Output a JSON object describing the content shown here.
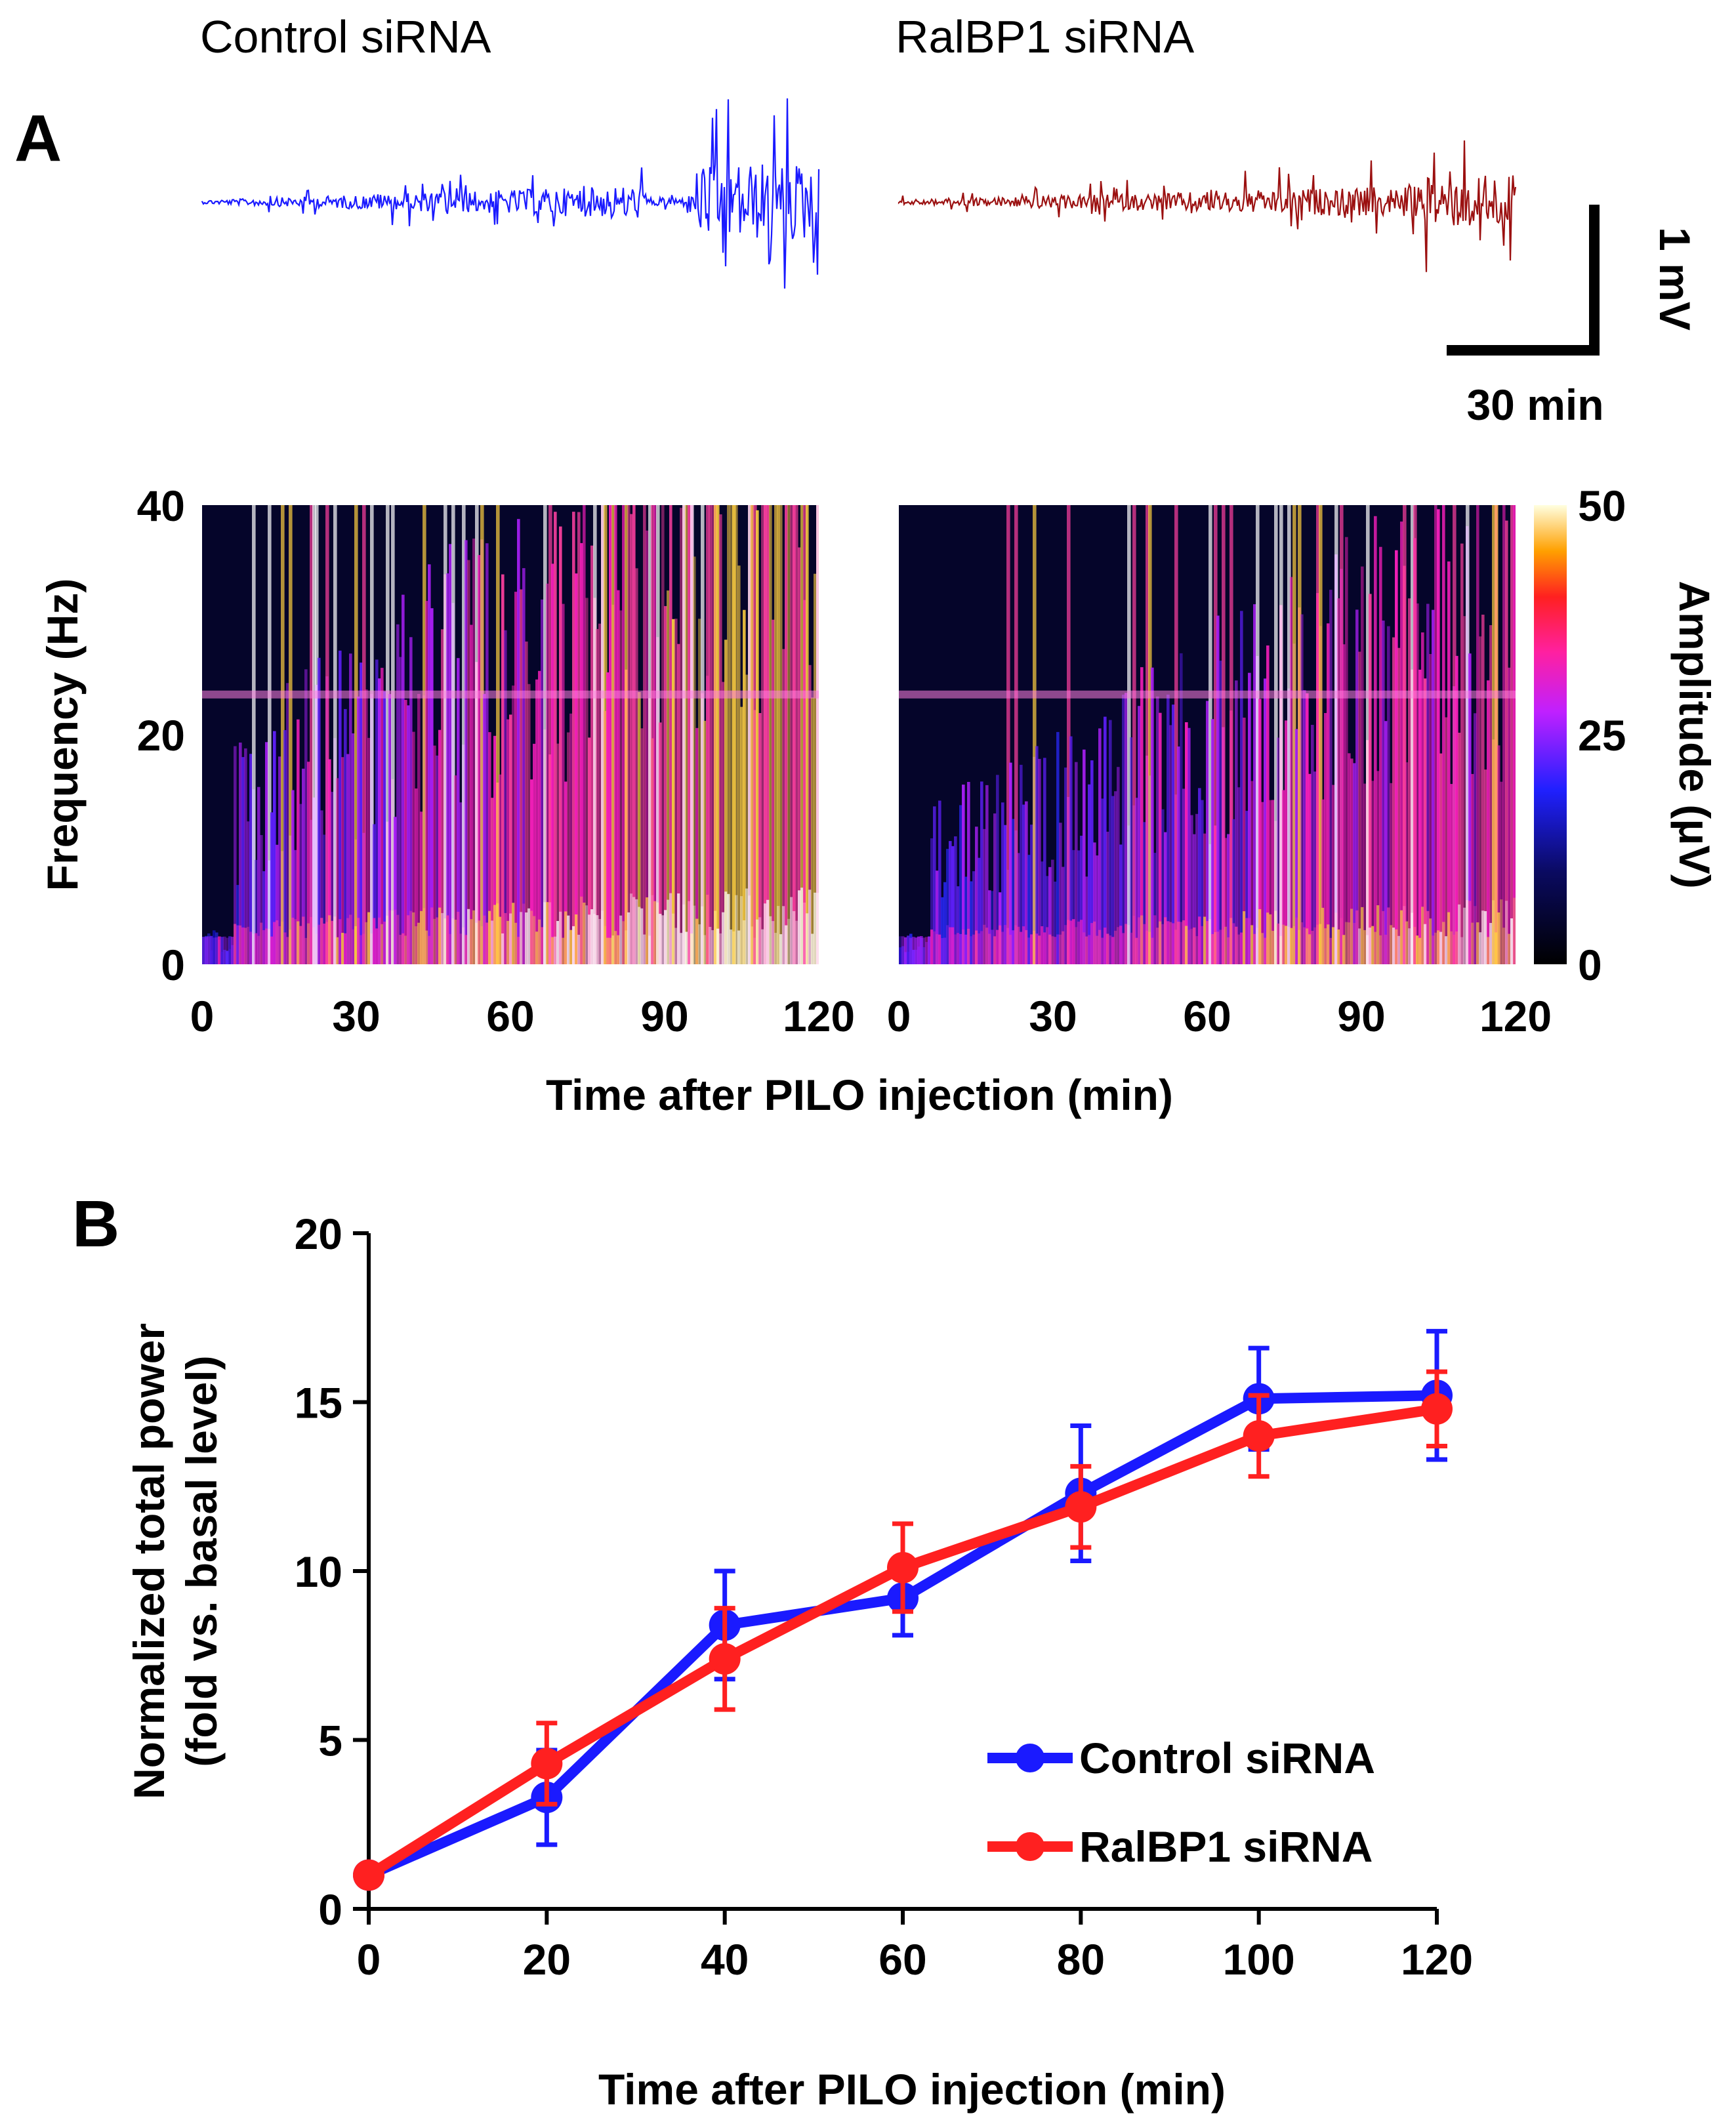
{
  "panel_a": {
    "letter": "A",
    "traces": [
      {
        "title": "Control siRNA",
        "color": "#1a1aff"
      },
      {
        "title": "RalBP1 siRNA",
        "color": "#9b1010"
      }
    ],
    "scale_bar": {
      "amplitude": "1 mV",
      "time": "30 min"
    },
    "spectrogram": {
      "ylabel": "Frequency (Hz)",
      "yticks": [
        "0",
        "20",
        "40"
      ],
      "xticks_left": [
        "0",
        "30",
        "60",
        "90",
        "120"
      ],
      "xticks_right": [
        "0",
        "30",
        "60",
        "90",
        "120"
      ],
      "xlabel": "Time after PILO injection (min)",
      "colorbar": {
        "label": "Amplitude (μV)",
        "ticks": [
          "0",
          "25",
          "50"
        ]
      }
    }
  },
  "panel_b": {
    "letter": "B"
  },
  "chart_data": {
    "type": "line",
    "title": "",
    "xlabel": "Time after PILO injection (min)",
    "ylabel_lines": [
      "Normalized total power",
      "(fold vs. basal level)"
    ],
    "x": [
      0,
      20,
      40,
      60,
      80,
      100,
      120
    ],
    "xlim": [
      0,
      120
    ],
    "ylim": [
      0,
      20
    ],
    "xticks": [
      0,
      20,
      40,
      60,
      80,
      100,
      120
    ],
    "yticks": [
      0,
      5,
      10,
      15,
      20
    ],
    "legend_position": "bottom-right",
    "series": [
      {
        "name": "Control siRNA",
        "color": "#1a1aff",
        "values": [
          1.0,
          3.3,
          8.4,
          9.2,
          12.3,
          15.1,
          15.2
        ],
        "errors": [
          0.1,
          1.4,
          1.6,
          1.1,
          2.0,
          1.5,
          1.9
        ]
      },
      {
        "name": "RalBP1 siRNA",
        "color": "#ff2020",
        "values": [
          1.0,
          4.3,
          7.4,
          10.1,
          11.9,
          14.0,
          14.8
        ],
        "errors": [
          0.1,
          1.2,
          1.5,
          1.3,
          1.2,
          1.2,
          1.1
        ]
      }
    ]
  }
}
